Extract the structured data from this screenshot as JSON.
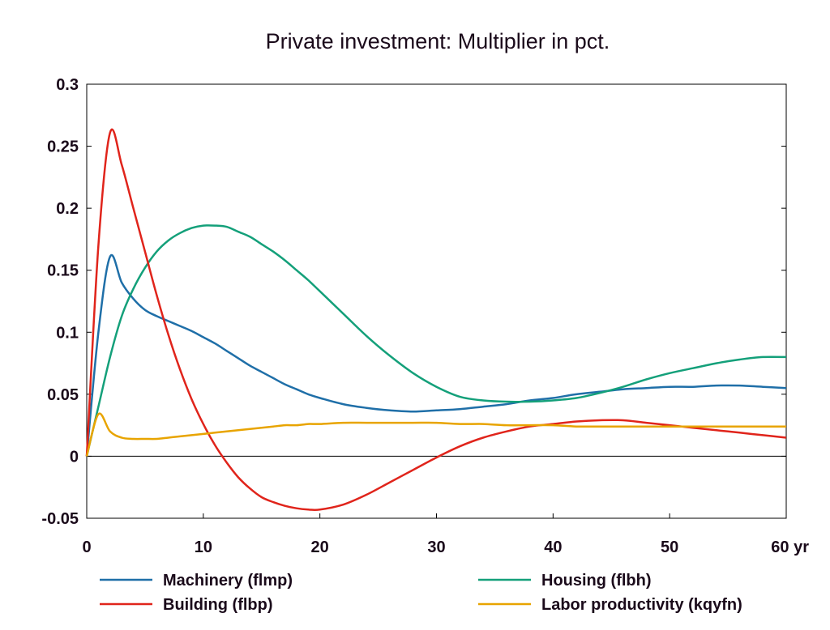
{
  "chart_data": {
    "type": "line",
    "title": "Private investment: Multiplier in pct.",
    "xlabel": "",
    "ylabel": "",
    "xlim": [
      0,
      60
    ],
    "ylim": [
      -0.05,
      0.3
    ],
    "x_ticks": [
      0,
      10,
      20,
      30,
      40,
      50,
      60
    ],
    "x_tick_labels": [
      "0",
      "10",
      "20",
      "30",
      "40",
      "50",
      "60 yr"
    ],
    "y_ticks": [
      -0.05,
      0,
      0.05,
      0.1,
      0.15,
      0.2,
      0.25,
      0.3
    ],
    "y_tick_labels": [
      "-0.05",
      "0",
      "0.05",
      "0.1",
      "0.15",
      "0.2",
      "0.25",
      "0.3"
    ],
    "grid": false,
    "zero_line": true,
    "legend_position": "bottom",
    "x": [
      0,
      1,
      2,
      3,
      4,
      5,
      6,
      7,
      8,
      9,
      10,
      11,
      12,
      13,
      14,
      15,
      16,
      17,
      18,
      19,
      20,
      22,
      24,
      26,
      28,
      30,
      32,
      34,
      36,
      38,
      40,
      42,
      44,
      46,
      48,
      50,
      52,
      54,
      56,
      58,
      60
    ],
    "series": [
      {
        "name": "Machinery (flmp)",
        "color": "#1f6fa8",
        "values": [
          0,
          0.1,
          0.161,
          0.14,
          0.127,
          0.118,
          0.113,
          0.109,
          0.105,
          0.101,
          0.096,
          0.091,
          0.085,
          0.079,
          0.073,
          0.068,
          0.063,
          0.058,
          0.054,
          0.05,
          0.047,
          0.042,
          0.039,
          0.037,
          0.036,
          0.037,
          0.038,
          0.04,
          0.042,
          0.045,
          0.047,
          0.05,
          0.052,
          0.054,
          0.055,
          0.056,
          0.056,
          0.057,
          0.057,
          0.056,
          0.055
        ]
      },
      {
        "name": "Housing (flbh)",
        "color": "#14a07a",
        "values": [
          0,
          0.04,
          0.08,
          0.113,
          0.135,
          0.152,
          0.165,
          0.174,
          0.18,
          0.184,
          0.186,
          0.186,
          0.185,
          0.181,
          0.177,
          0.171,
          0.165,
          0.158,
          0.15,
          0.142,
          0.133,
          0.115,
          0.097,
          0.081,
          0.067,
          0.056,
          0.048,
          0.045,
          0.044,
          0.044,
          0.045,
          0.047,
          0.051,
          0.056,
          0.062,
          0.067,
          0.071,
          0.075,
          0.078,
          0.08,
          0.08
        ]
      },
      {
        "name": "Building (flbp)",
        "color": "#e0241b",
        "values": [
          0,
          0.17,
          0.261,
          0.235,
          0.2,
          0.165,
          0.13,
          0.098,
          0.07,
          0.046,
          0.026,
          0.009,
          -0.005,
          -0.017,
          -0.026,
          -0.033,
          -0.037,
          -0.04,
          -0.042,
          -0.043,
          -0.043,
          -0.039,
          -0.031,
          -0.021,
          -0.011,
          -0.001,
          0.008,
          0.015,
          0.02,
          0.024,
          0.026,
          0.028,
          0.029,
          0.029,
          0.027,
          0.025,
          0.023,
          0.021,
          0.019,
          0.017,
          0.015
        ]
      },
      {
        "name": "Labor productivity (kqyfn)",
        "color": "#e8a400",
        "values": [
          0,
          0.034,
          0.02,
          0.015,
          0.014,
          0.014,
          0.014,
          0.015,
          0.016,
          0.017,
          0.018,
          0.019,
          0.02,
          0.021,
          0.022,
          0.023,
          0.024,
          0.025,
          0.025,
          0.026,
          0.026,
          0.027,
          0.027,
          0.027,
          0.027,
          0.027,
          0.026,
          0.026,
          0.025,
          0.025,
          0.025,
          0.024,
          0.024,
          0.024,
          0.024,
          0.024,
          0.024,
          0.024,
          0.024,
          0.024,
          0.024
        ]
      }
    ]
  }
}
